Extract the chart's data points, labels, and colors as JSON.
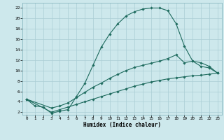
{
  "xlabel": "Humidex (Indice chaleur)",
  "xlim": [
    -0.5,
    23.5
  ],
  "ylim": [
    1.5,
    23
  ],
  "xticks": [
    0,
    1,
    2,
    3,
    4,
    5,
    6,
    7,
    8,
    9,
    10,
    11,
    12,
    13,
    14,
    15,
    16,
    17,
    18,
    19,
    20,
    21,
    22,
    23
  ],
  "yticks": [
    2,
    4,
    6,
    8,
    10,
    12,
    14,
    16,
    18,
    20,
    22
  ],
  "bg_color": "#cde8ec",
  "line_color": "#1e6b5e",
  "grid_color": "#aacdd4",
  "curve1_x": [
    0,
    1,
    2,
    3,
    4,
    5,
    6,
    7,
    8,
    9,
    10,
    11,
    12,
    13,
    14,
    15,
    16,
    17,
    18,
    19,
    20,
    21,
    22,
    23
  ],
  "curve1_y": [
    4.5,
    3.2,
    3.0,
    1.8,
    2.2,
    2.5,
    5.0,
    7.5,
    11.0,
    14.5,
    17.0,
    19.0,
    20.5,
    21.3,
    21.8,
    22.0,
    22.0,
    21.5,
    19.0,
    14.7,
    11.8,
    10.8,
    10.5,
    9.5
  ],
  "curve2_x": [
    0,
    3,
    4,
    5,
    6,
    7,
    8,
    9,
    10,
    11,
    12,
    13,
    14,
    15,
    16,
    17,
    18,
    19,
    20,
    21,
    22,
    23
  ],
  "curve2_y": [
    4.5,
    2.8,
    3.2,
    3.8,
    4.8,
    5.8,
    6.8,
    7.6,
    8.5,
    9.3,
    10.0,
    10.6,
    11.0,
    11.4,
    11.8,
    12.3,
    13.0,
    11.5,
    11.8,
    11.5,
    10.8,
    9.5
  ],
  "curve3_x": [
    0,
    3,
    4,
    5,
    6,
    7,
    8,
    9,
    10,
    11,
    12,
    13,
    14,
    15,
    16,
    17,
    18,
    19,
    20,
    21,
    22,
    23
  ],
  "curve3_y": [
    4.5,
    2.0,
    2.5,
    3.0,
    3.5,
    4.0,
    4.5,
    5.0,
    5.5,
    6.0,
    6.5,
    7.0,
    7.4,
    7.8,
    8.1,
    8.4,
    8.6,
    8.8,
    9.0,
    9.1,
    9.3,
    9.5
  ]
}
